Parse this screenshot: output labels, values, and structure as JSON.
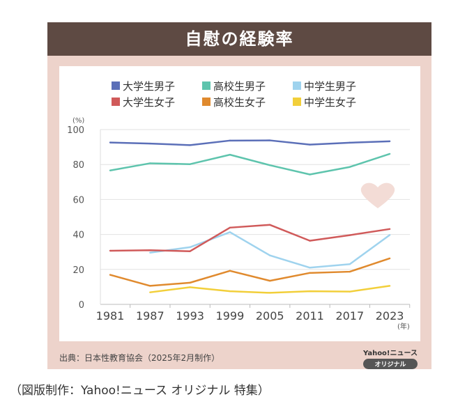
{
  "header": {
    "title": "自慰の経験率"
  },
  "source": "出典：日本性教育協会（2025年2月制作）",
  "logo": {
    "line1": "Yahoo!ニュース",
    "line2": "オリジナル"
  },
  "caption": "（図版制作：Yahoo!ニュース オリジナル 特集）",
  "chart_data": {
    "type": "line",
    "title": "自慰の経験率",
    "ylabel": "(%)",
    "xlabel": "(年)",
    "ylim": [
      0,
      100
    ],
    "yticks": [
      0,
      20,
      40,
      60,
      80,
      100
    ],
    "categories": [
      "1981",
      "1987",
      "1993",
      "1999",
      "2005",
      "2011",
      "2017",
      "2023"
    ],
    "grid": true,
    "legend": "top",
    "series": [
      {
        "name": "大学生男子",
        "color": "#5b6fb8",
        "values": [
          92.6,
          92.0,
          91.1,
          93.7,
          93.8,
          91.4,
          92.5,
          93.3
        ]
      },
      {
        "name": "高校生男子",
        "color": "#5ec4ad",
        "values": [
          76.6,
          80.7,
          80.2,
          85.6,
          79.6,
          74.3,
          78.6,
          86.1
        ]
      },
      {
        "name": "中学生男子",
        "color": "#9fd3ee",
        "values": [
          null,
          29.6,
          32.7,
          41.3,
          28.0,
          21.0,
          23.0,
          39.7
        ]
      },
      {
        "name": "大学生女子",
        "color": "#d05a5a",
        "values": [
          30.7,
          31.0,
          30.4,
          43.9,
          45.5,
          36.4,
          39.6,
          43.1
        ]
      },
      {
        "name": "高校生女子",
        "color": "#e08a2e",
        "values": [
          16.9,
          10.6,
          12.4,
          19.2,
          13.5,
          18.0,
          18.7,
          26.3
        ]
      },
      {
        "name": "中学生女子",
        "color": "#f2cf3a",
        "values": [
          null,
          6.9,
          9.8,
          7.5,
          6.6,
          7.5,
          7.3,
          10.6
        ]
      }
    ]
  }
}
